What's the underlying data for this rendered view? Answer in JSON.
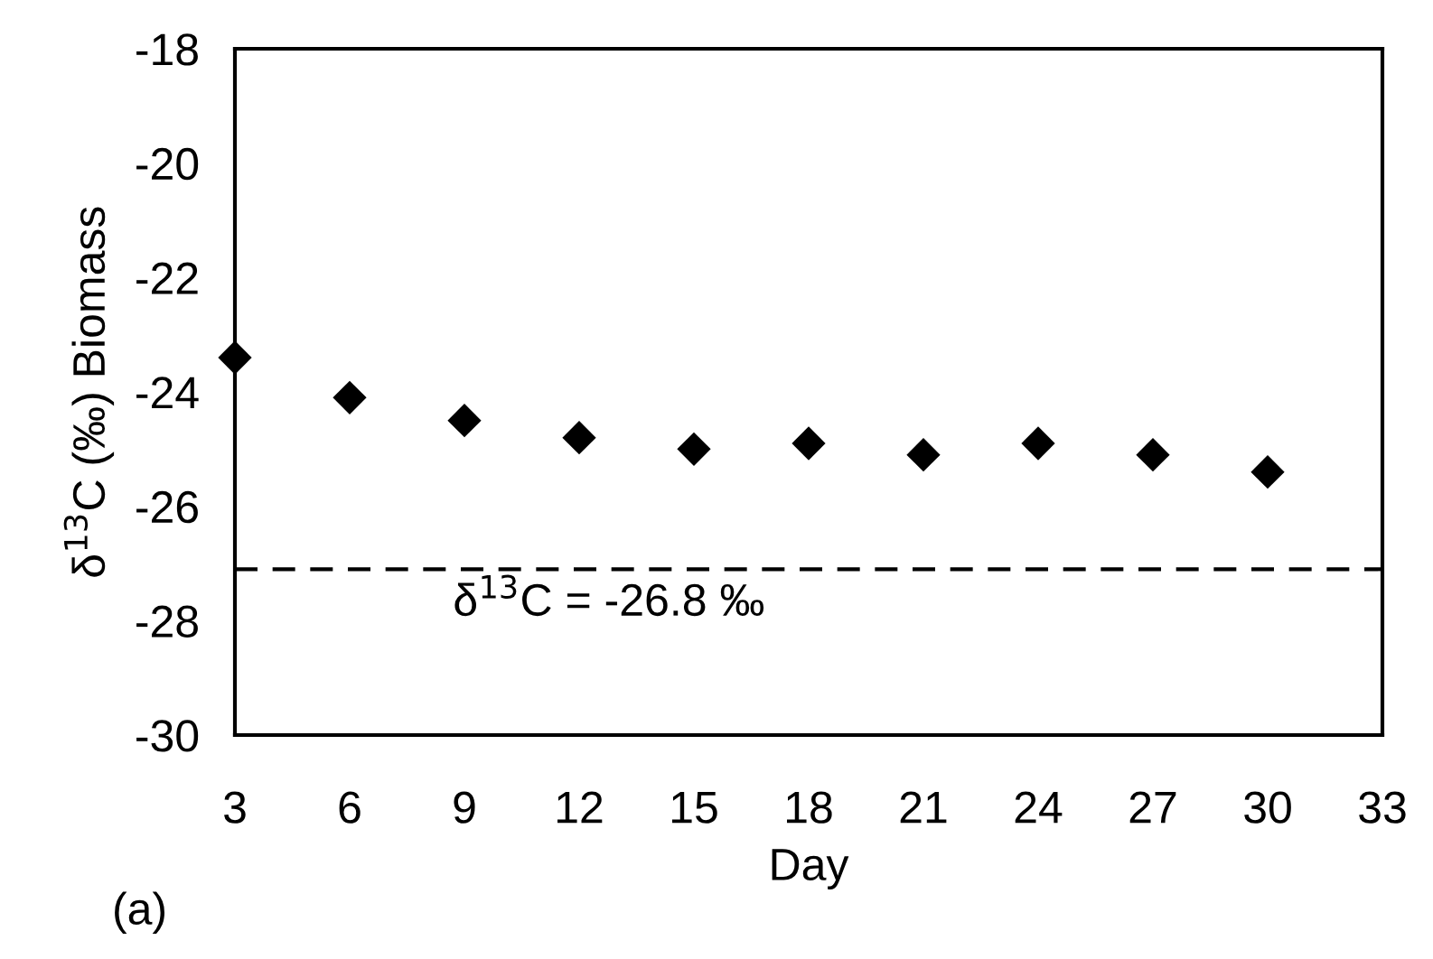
{
  "chart_data": {
    "type": "scatter",
    "xlabel": "Day",
    "ylabel": "δ$^{13}$C (‰) Biomass",
    "x": [
      3,
      6,
      9,
      12,
      15,
      18,
      21,
      24,
      27,
      30
    ],
    "series": [
      {
        "color": "#000000",
        "values": [
          -23.4,
          -24.1,
          -24.5,
          -24.8,
          -25.0,
          -24.9,
          -25.1,
          -24.9,
          -25.1,
          -25.4
        ]
      }
    ],
    "marker": "diamond",
    "xlim": [
      3,
      33
    ],
    "xticks": [
      3,
      6,
      9,
      12,
      15,
      18,
      21,
      24,
      27,
      30,
      33
    ],
    "ylim": [
      -30,
      -18
    ],
    "yticks": [
      -30,
      -28,
      -26,
      -24,
      -22,
      -20,
      -18
    ],
    "grid": false,
    "legend": false,
    "ref_lines": [
      {
        "axis": "y",
        "value": -27.1,
        "color": "#000000",
        "line_style": "dashed"
      }
    ],
    "annotations": [
      "δ$^{13}$C = -26.8 ‰",
      "(a)"
    ]
  }
}
